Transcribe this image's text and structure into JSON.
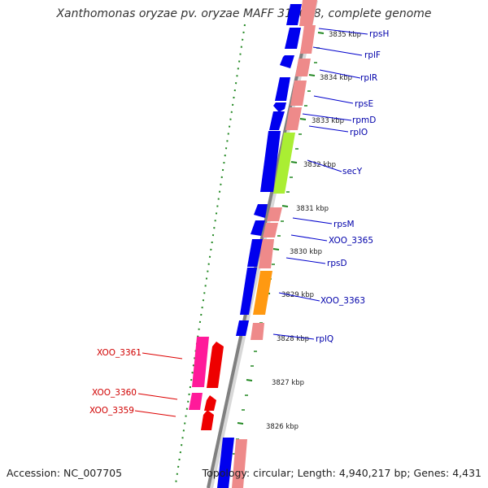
{
  "title": "Xanthomonas oryzae pv. oryzae MAFF 311018, complete genome",
  "accession": "Accession: NC_007705",
  "topology": "Topology: circular; Length: 4,940,217 bp; Genes: 4,431",
  "colors": {
    "backbone": "#808080",
    "blue": "#0000ee",
    "salmon": "#ee8a8a",
    "lime": "#aaee33",
    "orange": "#ff9911",
    "magenta": "#ff1a9a",
    "red": "#ee0000",
    "tick": "#228822",
    "label_blue": "#0000aa",
    "label_red": "#d00000"
  },
  "kbp_labels": [
    "3835 kbp",
    "3834 kbp",
    "3833 kbp",
    "3832 kbp",
    "3831 kbp",
    "3830 kbp",
    "3829 kbp",
    "3828 kbp",
    "3827 kbp",
    "3826 kbp"
  ],
  "gene_labels_right": [
    "rpsH",
    "rplF",
    "rplR",
    "rpsE",
    "rpmD",
    "rplO",
    "secY",
    "rpsM",
    "XOO_3365",
    "rpsD",
    "XOO_3363",
    "rplQ"
  ],
  "gene_labels_left": [
    "XOO_3361",
    "XOO_3360",
    "XOO_3359"
  ]
}
